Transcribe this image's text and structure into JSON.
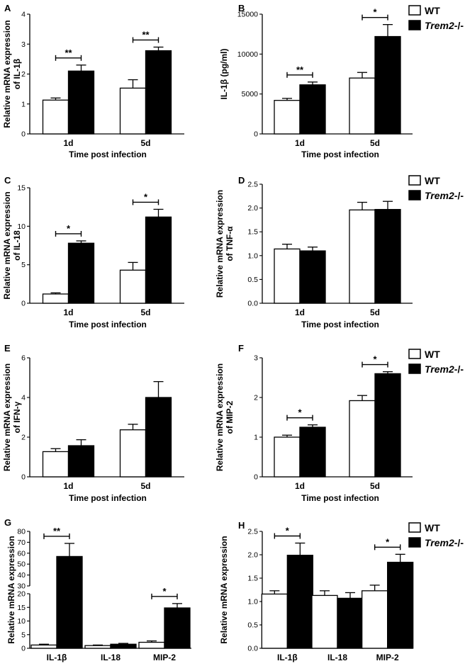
{
  "legend": {
    "wt": "WT",
    "ko_name": "Trem2",
    "ko_suffix": "-/-"
  },
  "colors": {
    "wt_fill": "#ffffff",
    "ko_fill": "#000000",
    "stroke": "#000000"
  },
  "chart_data": [
    {
      "panel": "A",
      "type": "bar",
      "ylabel": [
        "Relative mRNA expression",
        "of IL-1β"
      ],
      "xlabel": "Time post infection",
      "categories": [
        "1d",
        "5d"
      ],
      "ylim": [
        0,
        4
      ],
      "yticks": [
        0,
        1,
        2,
        3,
        4
      ],
      "yticklabels": [
        "0",
        "1",
        "2",
        "3",
        "4"
      ],
      "series": [
        {
          "name": "WT",
          "values": [
            1.13,
            1.53
          ],
          "errors": [
            0.07,
            0.28
          ]
        },
        {
          "name": "Trem2-/-",
          "values": [
            2.1,
            2.78
          ],
          "errors": [
            0.2,
            0.12
          ]
        }
      ],
      "significance": [
        {
          "category": 0,
          "label": "**"
        },
        {
          "category": 1,
          "label": "**"
        }
      ],
      "legend": false
    },
    {
      "panel": "B",
      "type": "bar",
      "ylabel": [
        "IL-1β  (pg/ml)"
      ],
      "xlabel": "Time post infection",
      "categories": [
        "1d",
        "5d"
      ],
      "ylim": [
        0,
        15000
      ],
      "yticks": [
        0,
        5000,
        10000,
        15000
      ],
      "yticklabels": [
        "0",
        "5000",
        "10000",
        "15000"
      ],
      "series": [
        {
          "name": "WT",
          "values": [
            4200,
            7000
          ],
          "errors": [
            250,
            700
          ]
        },
        {
          "name": "Trem2-/-",
          "values": [
            6150,
            12200
          ],
          "errors": [
            350,
            1500
          ]
        }
      ],
      "significance": [
        {
          "category": 0,
          "label": "**"
        },
        {
          "category": 1,
          "label": "*"
        }
      ],
      "legend": true
    },
    {
      "panel": "C",
      "type": "bar",
      "ylabel": [
        "Relative mRNA expression",
        "of IL-18"
      ],
      "xlabel": "Time post infection",
      "categories": [
        "1d",
        "5d"
      ],
      "ylim": [
        0,
        15
      ],
      "yticks": [
        0,
        5,
        10,
        15
      ],
      "yticklabels": [
        "0",
        "5",
        "10",
        "15"
      ],
      "series": [
        {
          "name": "WT",
          "values": [
            1.2,
            4.3
          ],
          "errors": [
            0.15,
            1.0
          ]
        },
        {
          "name": "Trem2-/-",
          "values": [
            7.8,
            11.2
          ],
          "errors": [
            0.3,
            1.0
          ]
        }
      ],
      "significance": [
        {
          "category": 0,
          "label": "*"
        },
        {
          "category": 1,
          "label": "*"
        }
      ],
      "legend": false
    },
    {
      "panel": "D",
      "type": "bar",
      "ylabel": [
        "Relative mRNA expression",
        "of TNF-α"
      ],
      "xlabel": "Time post infection",
      "categories": [
        "1d",
        "5d"
      ],
      "ylim": [
        0,
        2.5
      ],
      "yticks": [
        0,
        0.5,
        1,
        1.5,
        2,
        2.5
      ],
      "yticklabels": [
        "0.0",
        "0.5",
        "1.0",
        "1.5",
        "2.0",
        "2.5"
      ],
      "series": [
        {
          "name": "WT",
          "values": [
            1.14,
            1.96
          ],
          "errors": [
            0.1,
            0.16
          ]
        },
        {
          "name": "Trem2-/-",
          "values": [
            1.1,
            1.97
          ],
          "errors": [
            0.08,
            0.17
          ]
        }
      ],
      "significance": [],
      "legend": true
    },
    {
      "panel": "E",
      "type": "bar",
      "ylabel": [
        "Relative mRNA expression",
        "of IFN-γ"
      ],
      "xlabel": "Time post infection",
      "categories": [
        "1d",
        "5d"
      ],
      "ylim": [
        0,
        6
      ],
      "yticks": [
        0,
        2,
        4,
        6
      ],
      "yticklabels": [
        "0",
        "2",
        "4",
        "6"
      ],
      "series": [
        {
          "name": "WT",
          "values": [
            1.27,
            2.37
          ],
          "errors": [
            0.15,
            0.28
          ]
        },
        {
          "name": "Trem2-/-",
          "values": [
            1.57,
            4.0
          ],
          "errors": [
            0.3,
            0.8
          ]
        }
      ],
      "significance": [],
      "legend": false
    },
    {
      "panel": "F",
      "type": "bar",
      "ylabel": [
        "Relative mRNA expression",
        "of MIP-2"
      ],
      "xlabel": "Time post infection",
      "categories": [
        "1d",
        "5d"
      ],
      "ylim": [
        0,
        3
      ],
      "yticks": [
        0,
        1,
        2,
        3
      ],
      "yticklabels": [
        "0",
        "1",
        "2",
        "3"
      ],
      "series": [
        {
          "name": "WT",
          "values": [
            1.0,
            1.92
          ],
          "errors": [
            0.05,
            0.13
          ]
        },
        {
          "name": "Trem2-/-",
          "values": [
            1.25,
            2.6
          ],
          "errors": [
            0.06,
            0.05
          ]
        }
      ],
      "significance": [
        {
          "category": 0,
          "label": "*"
        },
        {
          "category": 1,
          "label": "*"
        }
      ],
      "legend": true
    },
    {
      "panel": "G",
      "type": "bar",
      "ylabel": [
        "Relative mRNA expression"
      ],
      "xlabel": "",
      "categories": [
        "IL-1β",
        "IL-18",
        "MIP-2"
      ],
      "ylim": [
        0,
        80
      ],
      "broken_axis": {
        "lower": [
          0,
          20
        ],
        "upper": [
          30,
          80
        ]
      },
      "yticks": [
        0,
        5,
        10,
        15,
        20,
        30,
        40,
        50,
        60,
        70,
        80
      ],
      "yticklabels": [
        "0",
        "5",
        "10",
        "15",
        "20",
        "30",
        "40",
        "50",
        "60",
        "70",
        "80"
      ],
      "series": [
        {
          "name": "WT",
          "values": [
            1.2,
            1.0,
            2.2
          ],
          "errors": [
            0.3,
            0.2,
            0.5
          ]
        },
        {
          "name": "Trem2-/-",
          "values": [
            57,
            1.5,
            14.8
          ],
          "errors": [
            12,
            0.3,
            1.6
          ]
        }
      ],
      "significance": [
        {
          "category": 0,
          "label": "**"
        },
        {
          "category": 2,
          "label": "*"
        }
      ],
      "legend": false
    },
    {
      "panel": "H",
      "type": "bar",
      "ylabel": [
        "Relative mRNA expression"
      ],
      "xlabel": "",
      "categories": [
        "IL-1β",
        "IL-18",
        "MIP-2"
      ],
      "ylim": [
        0,
        2.5
      ],
      "yticks": [
        0,
        0.5,
        1,
        1.5,
        2,
        2.5
      ],
      "yticklabels": [
        "0.0",
        "0.5",
        "1.0",
        "1.5",
        "2.0",
        "2.5"
      ],
      "series": [
        {
          "name": "WT",
          "values": [
            1.16,
            1.13,
            1.23
          ],
          "errors": [
            0.07,
            0.1,
            0.12
          ]
        },
        {
          "name": "Trem2-/-",
          "values": [
            1.99,
            1.07,
            1.84
          ],
          "errors": [
            0.26,
            0.12,
            0.17
          ]
        }
      ],
      "significance": [
        {
          "category": 0,
          "label": "*"
        },
        {
          "category": 2,
          "label": "*"
        }
      ],
      "legend": true
    }
  ]
}
